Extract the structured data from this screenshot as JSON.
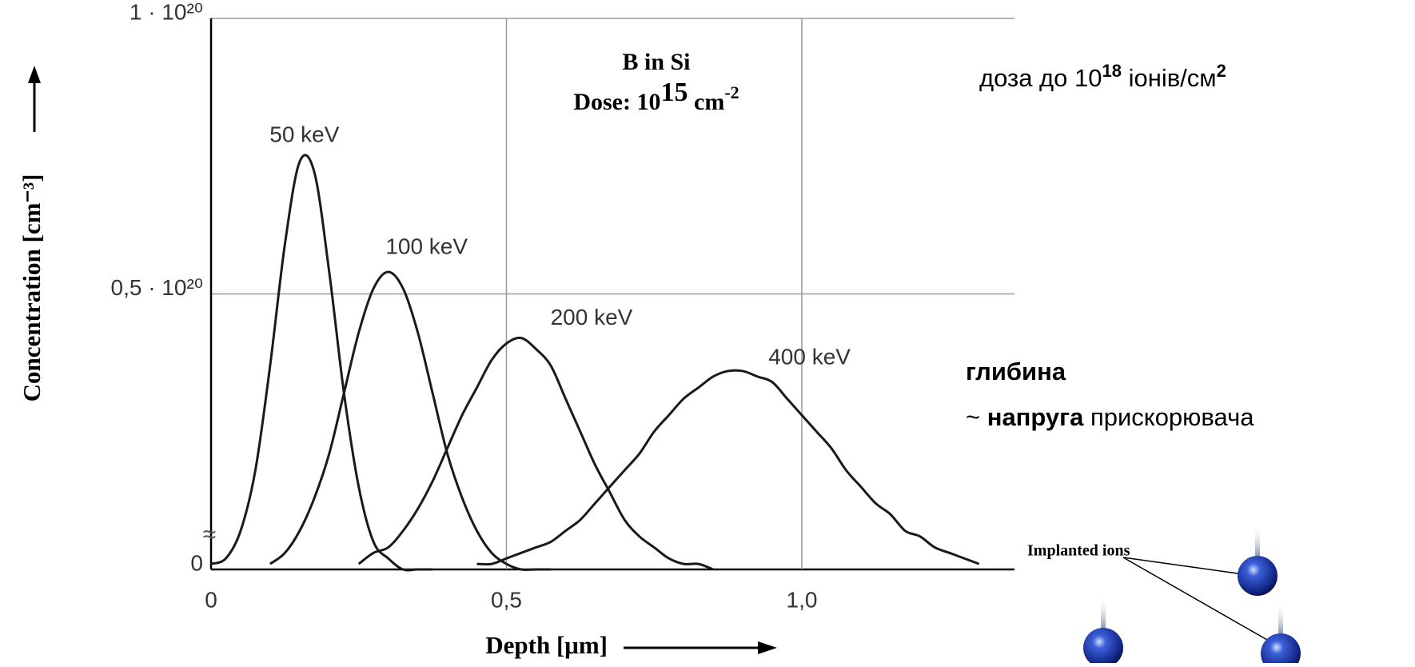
{
  "chart_data": {
    "type": "line",
    "xlabel": "Depth [μm]",
    "ylabel": "Concentration [cm⁻³]",
    "annotation": {
      "title": "B in Si",
      "dose": [
        "Dose: 10",
        "15",
        " cm",
        "-2"
      ]
    },
    "axis_break": "≈",
    "xlim": [
      0,
      1.36
    ],
    "ylim": [
      0,
      1
    ],
    "xticks": [
      0,
      {
        "value": 0.5,
        "label": "0,5"
      },
      {
        "value": 1,
        "label": "1,0"
      }
    ],
    "yticks": [
      0,
      {
        "value": 0.5,
        "label": "0,5 · 10²⁰"
      },
      {
        "value": 1,
        "label": "1 · 10²⁰"
      }
    ],
    "grid": true,
    "x": [
      0,
      0.025,
      0.05,
      0.075,
      0.1,
      0.125,
      0.15,
      0.175,
      0.2,
      0.225,
      0.25,
      0.275,
      0.3,
      0.325,
      0.35,
      0.375,
      0.4,
      0.425,
      0.45,
      0.475,
      0.5,
      0.525,
      0.55,
      0.575,
      0.6,
      0.625,
      0.65,
      0.675,
      0.7,
      0.725,
      0.75,
      0.775,
      0.8,
      0.825,
      0.85,
      0.875,
      0.9,
      0.925,
      0.95,
      0.975,
      1,
      1.025,
      1.05,
      1.075,
      1.1,
      1.125,
      1.15,
      1.175,
      1.2,
      1.225,
      1.25,
      1.275,
      1.3
    ],
    "series": [
      {
        "name": "50 keV",
        "color": "#1a1a1a",
        "values": [
          0.01,
          0.02,
          0.07,
          0.18,
          0.37,
          0.59,
          0.74,
          0.72,
          0.54,
          0.32,
          0.15,
          0.05,
          0.02,
          0,
          0,
          0,
          null,
          null,
          null,
          null,
          null,
          null,
          null,
          null,
          null,
          null,
          null,
          null,
          null,
          null,
          null,
          null,
          null,
          null,
          null,
          null,
          null,
          null,
          null,
          null,
          null,
          null,
          null,
          null,
          null,
          null,
          null,
          null,
          null,
          null,
          null,
          null,
          null
        ]
      },
      {
        "name": "100 keV",
        "color": "#1a1a1a",
        "values": [
          null,
          null,
          null,
          null,
          0.01,
          0.03,
          0.07,
          0.13,
          0.21,
          0.32,
          0.43,
          0.51,
          0.54,
          0.51,
          0.43,
          0.32,
          0.21,
          0.13,
          0.07,
          0.03,
          0.01,
          0,
          0,
          0,
          null,
          null,
          null,
          null,
          null,
          null,
          null,
          null,
          null,
          null,
          null,
          null,
          null,
          null,
          null,
          null,
          null,
          null,
          null,
          null,
          null,
          null,
          null,
          null,
          null,
          null,
          null,
          null,
          null
        ]
      },
      {
        "name": "200 keV",
        "color": "#1a1a1a",
        "values": [
          null,
          null,
          null,
          null,
          null,
          null,
          null,
          null,
          null,
          null,
          0.01,
          0.03,
          0.04,
          0.07,
          0.11,
          0.16,
          0.22,
          0.28,
          0.33,
          0.38,
          0.41,
          0.42,
          0.4,
          0.37,
          0.31,
          0.25,
          0.19,
          0.14,
          0.09,
          0.06,
          0.04,
          0.02,
          0.01,
          0.01,
          0,
          null,
          null,
          null,
          null,
          null,
          null,
          null,
          null,
          null,
          null,
          null,
          null,
          null,
          null,
          null,
          null,
          null,
          null
        ]
      },
      {
        "name": "400 keV",
        "color": "#1a1a1a",
        "values": [
          null,
          null,
          null,
          null,
          null,
          null,
          null,
          null,
          null,
          null,
          null,
          null,
          null,
          null,
          null,
          null,
          null,
          null,
          0.01,
          0.01,
          0.02,
          0.03,
          0.04,
          0.05,
          0.07,
          0.09,
          0.12,
          0.15,
          0.18,
          0.21,
          0.25,
          0.28,
          0.31,
          0.33,
          0.35,
          0.36,
          0.36,
          0.35,
          0.34,
          0.31,
          0.28,
          0.25,
          0.22,
          0.18,
          0.15,
          0.12,
          0.1,
          0.07,
          0.06,
          0.04,
          0.03,
          0.02,
          0.01
        ]
      }
    ]
  },
  "slide": {
    "dose_note": [
      "доза до 10",
      "18",
      " іонів/см",
      "2"
    ],
    "depth_title": "глибина",
    "voltage_line": [
      "~ ",
      "напруга",
      " прискорювача"
    ],
    "figure_label": "Implanted ions"
  }
}
